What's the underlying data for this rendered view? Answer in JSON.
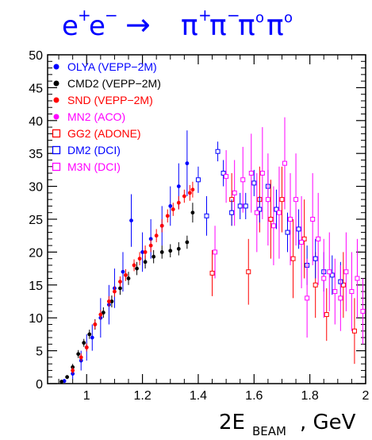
{
  "title": {
    "base": "e",
    "sup1": "+",
    "sup2": "−",
    "arrow": "→",
    "pi": "π",
    "sup_plus": "+",
    "sup_minus": "−",
    "sup_zero1": "o",
    "sup_zero2": "o"
  },
  "chart_data": {
    "type": "scatter",
    "xlabel": {
      "main": "2E",
      "sub": "BEAM",
      "unit": " , GeV"
    },
    "ylabel": "",
    "xlim": [
      0.86,
      2.0
    ],
    "ylim": [
      0,
      50
    ],
    "xticks": [
      1,
      1.2,
      1.4,
      1.6,
      1.8,
      2
    ],
    "yticks": [
      0,
      5,
      10,
      15,
      20,
      25,
      30,
      35,
      40,
      45,
      50
    ],
    "legend_position": "top-left",
    "series": [
      {
        "name": "OLYA (VEPP−2M)",
        "color": "#0000ff",
        "marker": "circle-filled",
        "points": [
          [
            0.92,
            0.4,
            0.3
          ],
          [
            0.95,
            1.5,
            0.8
          ],
          [
            0.98,
            3.5,
            1.5
          ],
          [
            1.0,
            5.5,
            2
          ],
          [
            1.02,
            7,
            2
          ],
          [
            1.05,
            10,
            3
          ],
          [
            1.08,
            12,
            3
          ],
          [
            1.1,
            14.5,
            3
          ],
          [
            1.13,
            17,
            3
          ],
          [
            1.16,
            24.8,
            4
          ],
          [
            1.2,
            20,
            3
          ],
          [
            1.23,
            22,
            3
          ],
          [
            1.27,
            24,
            3
          ],
          [
            1.3,
            27,
            3
          ],
          [
            1.33,
            30,
            3.5
          ],
          [
            1.36,
            33.5,
            5
          ]
        ]
      },
      {
        "name": "CMD2 (VEPP−2M)",
        "color": "#000000",
        "marker": "circle-filled",
        "points": [
          [
            0.91,
            0.3,
            0.2
          ],
          [
            0.93,
            1,
            0.3
          ],
          [
            0.95,
            2.5,
            0.5
          ],
          [
            0.97,
            4.5,
            0.6
          ],
          [
            0.99,
            6.2,
            0.6
          ],
          [
            1.01,
            7.5,
            0.7
          ],
          [
            1.03,
            9,
            0.8
          ],
          [
            1.06,
            10.8,
            0.8
          ],
          [
            1.09,
            12.5,
            0.9
          ],
          [
            1.12,
            14.5,
            1
          ],
          [
            1.15,
            16,
            1
          ],
          [
            1.18,
            17.5,
            1
          ],
          [
            1.21,
            18.5,
            1
          ],
          [
            1.24,
            19.3,
            1
          ],
          [
            1.27,
            20,
            1
          ],
          [
            1.3,
            20.2,
            1
          ],
          [
            1.33,
            20.5,
            1
          ],
          [
            1.36,
            21.5,
            1
          ],
          [
            1.38,
            26,
            1.5
          ]
        ]
      },
      {
        "name": "SND (VEPP−2M)",
        "color": "#ff0000",
        "marker": "circle-filled",
        "points": [
          [
            0.95,
            2,
            0.5
          ],
          [
            0.98,
            4,
            0.6
          ],
          [
            1.0,
            5.5,
            0.6
          ],
          [
            1.03,
            9,
            0.7
          ],
          [
            1.05,
            10.5,
            0.7
          ],
          [
            1.08,
            12.5,
            0.8
          ],
          [
            1.1,
            14,
            0.8
          ],
          [
            1.12,
            15.5,
            0.8
          ],
          [
            1.14,
            16.5,
            0.9
          ],
          [
            1.17,
            18,
            0.9
          ],
          [
            1.19,
            19,
            1
          ],
          [
            1.21,
            20,
            1
          ],
          [
            1.23,
            21,
            1
          ],
          [
            1.25,
            22.5,
            1
          ],
          [
            1.27,
            24,
            1
          ],
          [
            1.29,
            25.5,
            1
          ],
          [
            1.31,
            26.5,
            1
          ],
          [
            1.33,
            27.5,
            1
          ],
          [
            1.35,
            28.5,
            1
          ],
          [
            1.37,
            29,
            1.2
          ],
          [
            1.38,
            29.5,
            1.2
          ]
        ]
      },
      {
        "name": "MN2 (ACO)",
        "color": "#ff00ff",
        "marker": "circle-filled",
        "points": []
      },
      {
        "name": "GG2 (ADONE)",
        "color": "#ff0000",
        "marker": "square-open",
        "points": [
          [
            1.45,
            16.8,
            3.5
          ],
          [
            1.52,
            28,
            4
          ],
          [
            1.58,
            17,
            5
          ],
          [
            1.62,
            28,
            5
          ],
          [
            1.66,
            25,
            6
          ],
          [
            1.7,
            28,
            5
          ],
          [
            1.74,
            19,
            6
          ],
          [
            1.78,
            22,
            6
          ],
          [
            1.82,
            15,
            5
          ],
          [
            1.86,
            10.5,
            4
          ],
          [
            1.92,
            15,
            5
          ],
          [
            1.96,
            8,
            5
          ]
        ]
      },
      {
        "name": "DM2 (DCI)",
        "color": "#0000ff",
        "marker": "square-open",
        "points": [
          [
            1.4,
            31,
            2
          ],
          [
            1.43,
            25.5,
            3
          ],
          [
            1.47,
            35.3,
            1.5
          ],
          [
            1.49,
            32,
            2
          ],
          [
            1.52,
            26,
            2
          ],
          [
            1.55,
            27,
            2
          ],
          [
            1.57,
            27,
            2
          ],
          [
            1.6,
            30.5,
            2
          ],
          [
            1.62,
            26.5,
            2
          ],
          [
            1.65,
            30,
            2.5
          ],
          [
            1.68,
            26.5,
            3
          ],
          [
            1.72,
            23,
            3
          ],
          [
            1.76,
            23.5,
            3
          ],
          [
            1.79,
            18,
            3
          ],
          [
            1.82,
            19,
            3
          ],
          [
            1.85,
            17,
            3
          ],
          [
            1.88,
            16.5,
            3
          ],
          [
            1.91,
            15.5,
            3
          ]
        ]
      },
      {
        "name": "M3N (DCI)",
        "color": "#ff00ff",
        "marker": "square-open",
        "points": [
          [
            1.46,
            20,
            4
          ],
          [
            1.5,
            31.5,
            4
          ],
          [
            1.53,
            29,
            5
          ],
          [
            1.56,
            31,
            5
          ],
          [
            1.59,
            32,
            6
          ],
          [
            1.61,
            26,
            6
          ],
          [
            1.63,
            32,
            7
          ],
          [
            1.65,
            28,
            7
          ],
          [
            1.67,
            24,
            6
          ],
          [
            1.69,
            26,
            7
          ],
          [
            1.71,
            33.5,
            7
          ],
          [
            1.73,
            25,
            7
          ],
          [
            1.75,
            28,
            7
          ],
          [
            1.77,
            21.5,
            7
          ],
          [
            1.79,
            13,
            6
          ],
          [
            1.81,
            25,
            7
          ],
          [
            1.83,
            22,
            7
          ],
          [
            1.85,
            16,
            6
          ],
          [
            1.87,
            17,
            6
          ],
          [
            1.89,
            14,
            5
          ],
          [
            1.91,
            13,
            5
          ],
          [
            1.93,
            17,
            6
          ],
          [
            1.95,
            14,
            6
          ],
          [
            1.97,
            16,
            6
          ],
          [
            1.99,
            11,
            5
          ]
        ]
      }
    ]
  }
}
